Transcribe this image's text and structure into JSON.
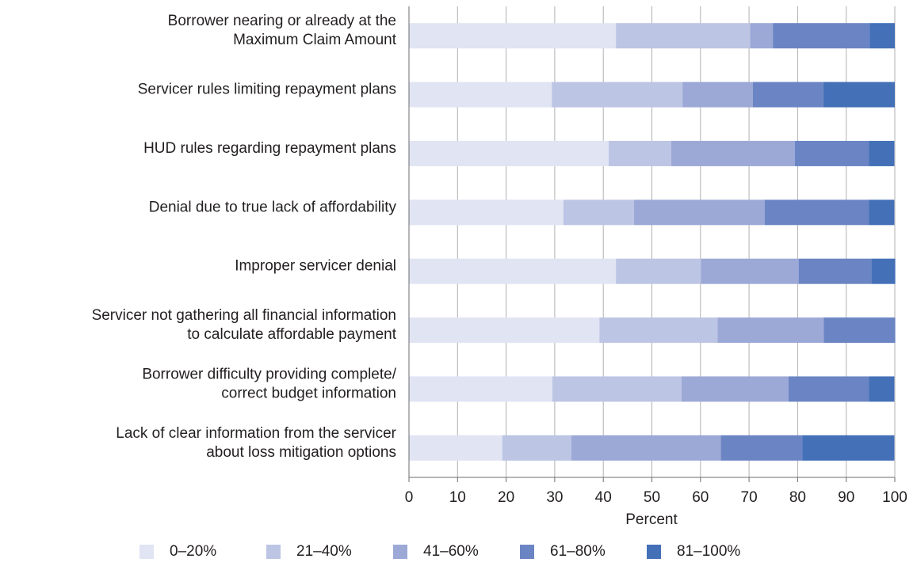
{
  "chart_data": {
    "type": "stacked-barh",
    "categories": [
      [
        "Borrower nearing or already at the",
        "Maximum Claim Amount"
      ],
      [
        "Servicer rules limiting repayment plans"
      ],
      [
        "HUD rules regarding repayment plans"
      ],
      [
        "Denial due to true lack of affordability"
      ],
      [
        "Improper servicer denial"
      ],
      [
        "Servicer not gathering all financial information",
        "to calculate affordable payment"
      ],
      [
        "Borrower difficulty providing complete/",
        "correct budget information"
      ],
      [
        "Lack of clear information from the servicer",
        "about loss mitigation options"
      ]
    ],
    "series": [
      {
        "name": "0–20%",
        "color": "#e0e4f3",
        "values": [
          42.6,
          29.4,
          41.1,
          31.8,
          42.6,
          39.2,
          29.5,
          19.2
        ]
      },
      {
        "name": "21–40%",
        "color": "#bcc5e4",
        "values": [
          27.6,
          26.9,
          12.9,
          14.5,
          17.5,
          24.3,
          26.6,
          14.2
        ]
      },
      {
        "name": "41–60%",
        "color": "#9ca9d7",
        "values": [
          4.7,
          14.5,
          25.4,
          26.9,
          20.1,
          21.9,
          22.0,
          30.8
        ]
      },
      {
        "name": "61–80%",
        "color": "#6b85c4",
        "values": [
          19.9,
          14.5,
          15.3,
          21.5,
          15.0,
          14.7,
          16.6,
          16.8
        ]
      },
      {
        "name": "81–100%",
        "color": "#4470b8",
        "values": [
          5.2,
          14.7,
          5.2,
          5.2,
          4.9,
          0,
          5.2,
          18.9
        ]
      }
    ],
    "xlabel": "Percent",
    "xlim": [
      0,
      100
    ],
    "xticks": [
      0,
      10,
      20,
      30,
      40,
      50,
      60,
      70,
      80,
      90,
      100
    ],
    "grid": true,
    "legend": "bottom"
  }
}
